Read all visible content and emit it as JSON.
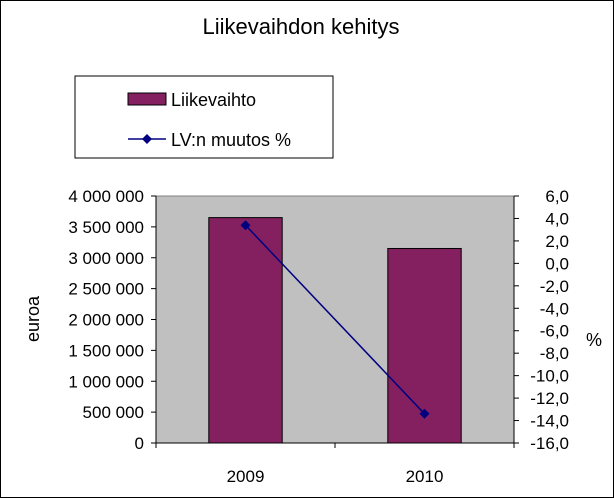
{
  "chart_data": {
    "type": "bar",
    "title": "Liikevaihdon kehitys",
    "categories": [
      "2009",
      "2010"
    ],
    "series": [
      {
        "name": "Liikevaihto",
        "type": "bar",
        "axis": "left",
        "values": [
          3650000,
          3150000
        ]
      },
      {
        "name": "LV:n muutos %",
        "type": "line",
        "axis": "right",
        "values": [
          3.4,
          -13.4
        ]
      }
    ],
    "ylabel": "euroa",
    "ylim": [
      0,
      4000000
    ],
    "yticks": [
      0,
      500000,
      1000000,
      1500000,
      2000000,
      2500000,
      3000000,
      3500000,
      4000000
    ],
    "ytick_labels": [
      "0",
      "500 000",
      "1 000 000",
      "1 500 000",
      "2 000 000",
      "2 500 000",
      "3 000 000",
      "3 500 000",
      "4 000 000"
    ],
    "y2label": "%",
    "y2lim": [
      -16,
      6
    ],
    "y2ticks": [
      -16,
      -14,
      -12,
      -10,
      -8,
      -6,
      -4,
      -2,
      0,
      2,
      4,
      6
    ],
    "y2tick_labels": [
      "-16,0",
      "-14,0",
      "-12,0",
      "-10,0",
      "-8,0",
      "-6,0",
      "-4,0",
      "-2,0",
      "0,0",
      "2,0",
      "4,0",
      "6,0"
    ],
    "grid": false,
    "legend_position": "top-left",
    "colors": {
      "bar_fill": "#842060",
      "line": "#000080",
      "plot_background": "#c0c0c0"
    }
  }
}
